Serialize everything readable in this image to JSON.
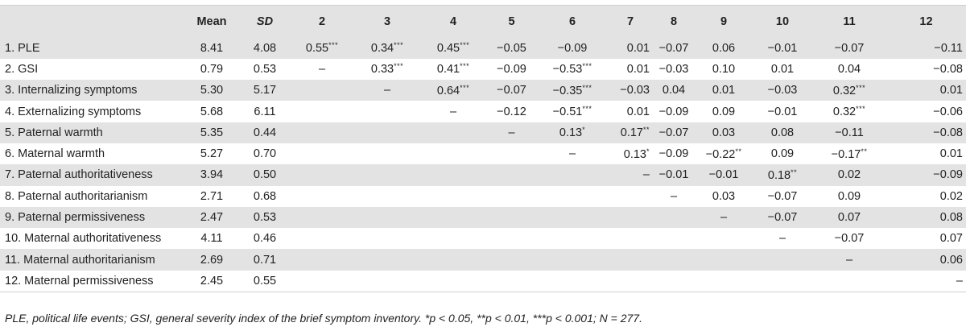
{
  "table": {
    "headers": [
      "",
      "Mean",
      "SD",
      "2",
      "3",
      "4",
      "5",
      "6",
      "7",
      "8",
      "9",
      "10",
      "11",
      "12"
    ],
    "rows": [
      {
        "label": "1. PLE",
        "mean": "8.41",
        "sd": "4.08",
        "cells": [
          {
            "v": "0.55",
            "s": "***"
          },
          {
            "v": "0.34",
            "s": "***"
          },
          {
            "v": "0.45",
            "s": "***"
          },
          {
            "v": "−0.05",
            "s": ""
          },
          {
            "v": "−0.09",
            "s": ""
          },
          {
            "v": "0.01",
            "s": ""
          },
          {
            "v": "−0.07",
            "s": ""
          },
          {
            "v": "0.06",
            "s": ""
          },
          {
            "v": "−0.01",
            "s": ""
          },
          {
            "v": "−0.07",
            "s": ""
          },
          {
            "v": "−0.11",
            "s": ""
          }
        ]
      },
      {
        "label": "2. GSI",
        "mean": "0.79",
        "sd": "0.53",
        "cells": [
          {
            "v": "–",
            "s": ""
          },
          {
            "v": "0.33",
            "s": "***"
          },
          {
            "v": "0.41",
            "s": "***"
          },
          {
            "v": "−0.09",
            "s": ""
          },
          {
            "v": "−0.53",
            "s": "***"
          },
          {
            "v": "0.01",
            "s": ""
          },
          {
            "v": "−0.03",
            "s": ""
          },
          {
            "v": "0.10",
            "s": ""
          },
          {
            "v": "0.01",
            "s": ""
          },
          {
            "v": "0.04",
            "s": ""
          },
          {
            "v": "−0.08",
            "s": ""
          }
        ]
      },
      {
        "label": "3. Internalizing symptoms",
        "mean": "5.30",
        "sd": "5.17",
        "cells": [
          {
            "v": "",
            "s": ""
          },
          {
            "v": "–",
            "s": ""
          },
          {
            "v": "0.64",
            "s": "***"
          },
          {
            "v": "−0.07",
            "s": ""
          },
          {
            "v": "−0.35",
            "s": "***"
          },
          {
            "v": "−0.03",
            "s": ""
          },
          {
            "v": "0.04",
            "s": ""
          },
          {
            "v": "0.01",
            "s": ""
          },
          {
            "v": "−0.03",
            "s": ""
          },
          {
            "v": "0.32",
            "s": "***"
          },
          {
            "v": "0.01",
            "s": ""
          }
        ]
      },
      {
        "label": "4. Externalizing symptoms",
        "mean": "5.68",
        "sd": "6.11",
        "cells": [
          {
            "v": "",
            "s": ""
          },
          {
            "v": "",
            "s": ""
          },
          {
            "v": "–",
            "s": ""
          },
          {
            "v": "−0.12",
            "s": ""
          },
          {
            "v": "−0.51",
            "s": "***"
          },
          {
            "v": "0.01",
            "s": ""
          },
          {
            "v": "−0.09",
            "s": ""
          },
          {
            "v": "0.09",
            "s": ""
          },
          {
            "v": "−0.01",
            "s": ""
          },
          {
            "v": "0.32",
            "s": "***"
          },
          {
            "v": "−0.06",
            "s": ""
          }
        ]
      },
      {
        "label": "5. Paternal warmth",
        "mean": "5.35",
        "sd": "0.44",
        "cells": [
          {
            "v": "",
            "s": ""
          },
          {
            "v": "",
            "s": ""
          },
          {
            "v": "",
            "s": ""
          },
          {
            "v": "–",
            "s": ""
          },
          {
            "v": "0.13",
            "s": "*"
          },
          {
            "v": "0.17",
            "s": "**"
          },
          {
            "v": "−0.07",
            "s": ""
          },
          {
            "v": "0.03",
            "s": ""
          },
          {
            "v": "0.08",
            "s": ""
          },
          {
            "v": "−0.11",
            "s": ""
          },
          {
            "v": "−0.08",
            "s": ""
          }
        ]
      },
      {
        "label": "6. Maternal warmth",
        "mean": "5.27",
        "sd": "0.70",
        "cells": [
          {
            "v": "",
            "s": ""
          },
          {
            "v": "",
            "s": ""
          },
          {
            "v": "",
            "s": ""
          },
          {
            "v": "",
            "s": ""
          },
          {
            "v": "–",
            "s": ""
          },
          {
            "v": "0.13",
            "s": "*"
          },
          {
            "v": "−0.09",
            "s": ""
          },
          {
            "v": "−0.22",
            "s": "**"
          },
          {
            "v": "0.09",
            "s": ""
          },
          {
            "v": "−0.17",
            "s": "**"
          },
          {
            "v": "0.01",
            "s": ""
          }
        ]
      },
      {
        "label": "7. Paternal authoritativeness",
        "mean": "3.94",
        "sd": "0.50",
        "cells": [
          {
            "v": "",
            "s": ""
          },
          {
            "v": "",
            "s": ""
          },
          {
            "v": "",
            "s": ""
          },
          {
            "v": "",
            "s": ""
          },
          {
            "v": "",
            "s": ""
          },
          {
            "v": "–",
            "s": ""
          },
          {
            "v": "−0.01",
            "s": ""
          },
          {
            "v": "−0.01",
            "s": ""
          },
          {
            "v": "0.18",
            "s": "**"
          },
          {
            "v": "0.02",
            "s": ""
          },
          {
            "v": "−0.09",
            "s": ""
          }
        ]
      },
      {
        "label": "8. Paternal authoritarianism",
        "mean": "2.71",
        "sd": "0.68",
        "cells": [
          {
            "v": "",
            "s": ""
          },
          {
            "v": "",
            "s": ""
          },
          {
            "v": "",
            "s": ""
          },
          {
            "v": "",
            "s": ""
          },
          {
            "v": "",
            "s": ""
          },
          {
            "v": "",
            "s": ""
          },
          {
            "v": "–",
            "s": ""
          },
          {
            "v": "0.03",
            "s": ""
          },
          {
            "v": "−0.07",
            "s": ""
          },
          {
            "v": "0.09",
            "s": ""
          },
          {
            "v": "0.02",
            "s": ""
          }
        ]
      },
      {
        "label": "9. Paternal permissiveness",
        "mean": "2.47",
        "sd": "0.53",
        "cells": [
          {
            "v": "",
            "s": ""
          },
          {
            "v": "",
            "s": ""
          },
          {
            "v": "",
            "s": ""
          },
          {
            "v": "",
            "s": ""
          },
          {
            "v": "",
            "s": ""
          },
          {
            "v": "",
            "s": ""
          },
          {
            "v": "",
            "s": ""
          },
          {
            "v": "–",
            "s": ""
          },
          {
            "v": "−0.07",
            "s": ""
          },
          {
            "v": "0.07",
            "s": ""
          },
          {
            "v": "0.08",
            "s": ""
          }
        ]
      },
      {
        "label": "10. Maternal authoritativeness",
        "mean": "4.11",
        "sd": "0.46",
        "cells": [
          {
            "v": "",
            "s": ""
          },
          {
            "v": "",
            "s": ""
          },
          {
            "v": "",
            "s": ""
          },
          {
            "v": "",
            "s": ""
          },
          {
            "v": "",
            "s": ""
          },
          {
            "v": "",
            "s": ""
          },
          {
            "v": "",
            "s": ""
          },
          {
            "v": "",
            "s": ""
          },
          {
            "v": "–",
            "s": ""
          },
          {
            "v": "−0.07",
            "s": ""
          },
          {
            "v": "0.07",
            "s": ""
          }
        ]
      },
      {
        "label": "11. Maternal authoritarianism",
        "mean": "2.69",
        "sd": "0.71",
        "cells": [
          {
            "v": "",
            "s": ""
          },
          {
            "v": "",
            "s": ""
          },
          {
            "v": "",
            "s": ""
          },
          {
            "v": "",
            "s": ""
          },
          {
            "v": "",
            "s": ""
          },
          {
            "v": "",
            "s": ""
          },
          {
            "v": "",
            "s": ""
          },
          {
            "v": "",
            "s": ""
          },
          {
            "v": "",
            "s": ""
          },
          {
            "v": "–",
            "s": ""
          },
          {
            "v": "0.06",
            "s": ""
          }
        ]
      },
      {
        "label": "12. Maternal permissiveness",
        "mean": "2.45",
        "sd": "0.55",
        "cells": [
          {
            "v": "",
            "s": ""
          },
          {
            "v": "",
            "s": ""
          },
          {
            "v": "",
            "s": ""
          },
          {
            "v": "",
            "s": ""
          },
          {
            "v": "",
            "s": ""
          },
          {
            "v": "",
            "s": ""
          },
          {
            "v": "",
            "s": ""
          },
          {
            "v": "",
            "s": ""
          },
          {
            "v": "",
            "s": ""
          },
          {
            "v": "",
            "s": ""
          },
          {
            "v": "–",
            "s": ""
          }
        ]
      }
    ]
  },
  "note": "PLE, political life events; GSI, general severity index of the brief symptom inventory. *p < 0.05, **p < 0.01, ***p < 0.001; N = 277."
}
